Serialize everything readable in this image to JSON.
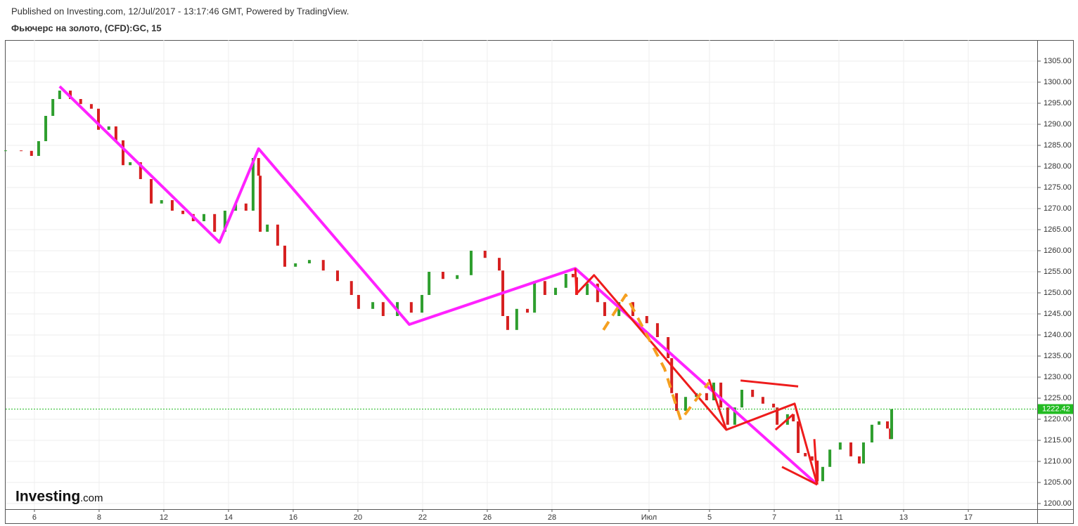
{
  "header": {
    "published": "Published on Investing.com, 12/Jul/2017 - 13:17:46 GMT, Powered by TradingView.",
    "instrument": "Фьючерс на золото, (CFD):GC, 15"
  },
  "logo": {
    "name": "Investing",
    "suffix": ".com"
  },
  "chart_data": {
    "type": "candlestick",
    "x": [
      -0.89,
      -0.41,
      -0.09,
      0.13,
      0.35,
      0.57,
      0.78,
      1.11,
      1.43,
      1.76,
      1.98,
      2.3,
      2.52,
      2.74,
      2.96,
      3.28,
      3.61,
      3.93,
      4.26,
      4.59,
      4.91,
      5.24,
      5.57,
      5.89,
      6.22,
      6.54,
      6.76,
      6.93,
      6.98,
      7.2,
      7.52,
      7.74,
      8.07,
      8.5,
      8.93,
      9.37,
      9.8,
      10.02,
      10.46,
      10.78,
      11.22,
      11.65,
      11.98,
      12.2,
      12.63,
      13.07,
      13.5,
      13.93,
      14.37,
      14.48,
      14.63,
      14.91,
      15.24,
      15.46,
      15.78,
      16.11,
      16.43,
      16.65,
      16.76,
      17.09,
      17.41,
      17.63,
      18.07,
      18.5,
      18.93,
      19.26,
      19.59,
      19.7,
      19.85,
      20.13,
      20.46,
      20.78,
      21.0,
      21.22,
      21.43,
      21.65,
      21.87,
      22.2,
      22.52,
      22.85,
      22.96,
      23.28,
      23.46,
      23.61,
      23.83,
      24.04,
      24.2,
      24.37,
      24.59,
      24.91,
      25.24,
      25.5,
      25.63,
      25.89,
      26.11,
      26.37,
      26.46,
      26.5
    ],
    "values": [
      1283.8,
      1283.7,
      1282.5,
      1286,
      1292,
      1296,
      1298,
      1296,
      1294.8,
      1293.7,
      1288.7,
      1289.5,
      1286.2,
      1280.3,
      1281,
      1277,
      1271.2,
      1272,
      1269.5,
      1268.7,
      1267,
      1268.7,
      1264.5,
      1269.5,
      1271.2,
      1269.5,
      1282,
      1277.8,
      1264.5,
      1266.2,
      1261.2,
      1256.2,
      1257,
      1257.8,
      1255.3,
      1252.8,
      1249.5,
      1246.2,
      1247.8,
      1244.5,
      1247.8,
      1245.3,
      1249.5,
      1255,
      1253.3,
      1254.2,
      1260,
      1258.3,
      1255.3,
      1244.5,
      1241.2,
      1246.2,
      1245.3,
      1252.8,
      1249.5,
      1251.2,
      1254.5,
      1253.7,
      1249.5,
      1252.2,
      1247.8,
      1244.5,
      1247.8,
      1244.5,
      1242.8,
      1239.5,
      1234.5,
      1226.2,
      1222,
      1225.3,
      1226.2,
      1224.5,
      1228.7,
      1222.8,
      1218.7,
      1222.8,
      1227,
      1225.3,
      1223.7,
      1222.8,
      1218.7,
      1221.2,
      1219.5,
      1212,
      1211.2,
      1210.2,
      1205.3,
      1208.7,
      1212.8,
      1214.5,
      1211.2,
      1209.5,
      1214.5,
      1218.7,
      1219.5,
      1217.8,
      1215.3,
      1222.4
    ],
    "up_color": "#2e9e2e",
    "down_color": "#d62020",
    "last_price": {
      "value": 1222.42,
      "label": "1222.42",
      "color": "#22bb22"
    },
    "xlim": [
      -0.89,
      31.0
    ],
    "ylim": [
      1198.67,
      1310
    ],
    "xticks": [
      {
        "value": 0,
        "label": "6"
      },
      {
        "value": 2,
        "label": "8"
      },
      {
        "value": 4,
        "label": "12"
      },
      {
        "value": 6,
        "label": "14"
      },
      {
        "value": 8,
        "label": "16"
      },
      {
        "value": 10,
        "label": "20"
      },
      {
        "value": 12,
        "label": "22"
      },
      {
        "value": 14,
        "label": "26"
      },
      {
        "value": 16,
        "label": "28"
      },
      {
        "value": 19,
        "label": "Июл"
      },
      {
        "value": 20.87,
        "label": "5"
      },
      {
        "value": 22.87,
        "label": "7"
      },
      {
        "value": 24.87,
        "label": "11"
      },
      {
        "value": 26.87,
        "label": "13"
      },
      {
        "value": 28.87,
        "label": "17"
      }
    ],
    "yticks": [
      {
        "value": 1200,
        "label": "1200.00"
      },
      {
        "value": 1205,
        "label": "1205.00"
      },
      {
        "value": 1210,
        "label": "1210.00"
      },
      {
        "value": 1215,
        "label": "1215.00"
      },
      {
        "value": 1220,
        "label": "1220.00"
      },
      {
        "value": 1225,
        "label": "1225.00"
      },
      {
        "value": 1230,
        "label": "1230.00"
      },
      {
        "value": 1235,
        "label": "1235.00"
      },
      {
        "value": 1240,
        "label": "1240.00"
      },
      {
        "value": 1245,
        "label": "1245.00"
      },
      {
        "value": 1250,
        "label": "1250.00"
      },
      {
        "value": 1255,
        "label": "1255.00"
      },
      {
        "value": 1260,
        "label": "1260.00"
      },
      {
        "value": 1265,
        "label": "1265.00"
      },
      {
        "value": 1270,
        "label": "1270.00"
      },
      {
        "value": 1275,
        "label": "1275.00"
      },
      {
        "value": 1280,
        "label": "1280.00"
      },
      {
        "value": 1285,
        "label": "1285.00"
      },
      {
        "value": 1290,
        "label": "1290.00"
      },
      {
        "value": 1295,
        "label": "1295.00"
      },
      {
        "value": 1300,
        "label": "1300.00"
      },
      {
        "value": 1305,
        "label": "1305.00"
      }
    ],
    "grid": true,
    "drawings": [
      {
        "color": "#ff22ff",
        "dashed": false,
        "width": 4,
        "x": [
          0.78,
          5.72,
          6.93,
          11.59,
          16.72,
          24.2
        ],
        "y": [
          1299,
          1262,
          1284.2,
          1242.5,
          1255.8,
          1204.5
        ]
      },
      {
        "color": "#ee1c1c",
        "dashed": false,
        "width": 3,
        "x": [
          16.72,
          16.76,
          17.3,
          21.39,
          23.5,
          24.2
        ],
        "y": [
          1255.8,
          1249.8,
          1254.2,
          1217.5,
          1223.7,
          1204.5
        ]
      },
      {
        "color": "#ee1c1c",
        "dashed": false,
        "width": 3,
        "x": [
          20.85,
          21.39
        ],
        "y": [
          1229.5,
          1217.5
        ]
      },
      {
        "color": "#ee1c1c",
        "dashed": false,
        "width": 3,
        "x": [
          21.83,
          23.61
        ],
        "y": [
          1229.2,
          1227.8
        ]
      },
      {
        "color": "#ee1c1c",
        "dashed": false,
        "width": 3,
        "x": [
          22.91,
          23.46
        ],
        "y": [
          1217.5,
          1221.2
        ]
      },
      {
        "color": "#ee1c1c",
        "dashed": false,
        "width": 3,
        "x": [
          23.11,
          24.2
        ],
        "y": [
          1208.7,
          1204.5
        ]
      },
      {
        "color": "#ee1c1c",
        "dashed": false,
        "width": 3,
        "x": [
          24.11,
          24.2
        ],
        "y": [
          1215.3,
          1204.5
        ]
      },
      {
        "color": "#f5a020",
        "dashed": true,
        "width": 4,
        "x": [
          17.59,
          18.28,
          19.48,
          19.98,
          20.85
        ],
        "y": [
          1241.2,
          1249.5,
          1232,
          1219.8,
          1228.7
        ]
      }
    ]
  }
}
